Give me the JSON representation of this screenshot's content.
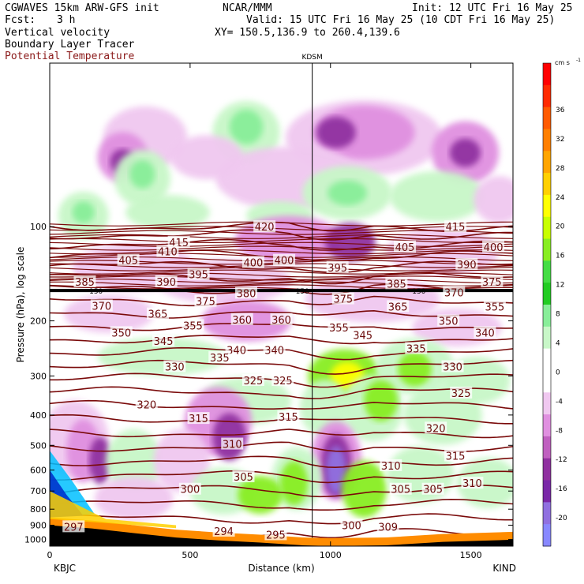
{
  "header": {
    "model": "CGWAVES 15km ARW-GFS init",
    "center": "NCAR/MMM",
    "init": "Init: 12 UTC Fri 16 May 25",
    "fcst_label": "Fcst:",
    "fcst_value": "3 h",
    "valid": "Valid: 15 UTC Fri 16 May 25 (10 CDT Fri 16 May 25)",
    "field1": "Vertical velocity",
    "xy": "XY= 150.5,136.9 to 260.4,139.6",
    "field2": "Boundary Layer Tracer",
    "field3": "Potential Temperature"
  },
  "chart_data": {
    "type": "heatmap",
    "title": "",
    "xlabel": "Distance (km)",
    "ylabel": "Pressure (hPa), log scale",
    "xlim": [
      0,
      1650
    ],
    "ylim": [
      1050,
      30
    ],
    "x_ticks": [
      0,
      500,
      1000,
      1500
    ],
    "y_ticks": [
      100,
      200,
      300,
      400,
      500,
      600,
      700,
      800,
      900,
      1000
    ],
    "station_marker": {
      "label": "KDSM",
      "x": 935
    },
    "endpoints": {
      "left": "KBJC",
      "right": "KIND"
    },
    "colorbar": {
      "unit": "cm s",
      "unit_exp": "-1",
      "levels": [
        36,
        32,
        28,
        24,
        20,
        16,
        12,
        8,
        4,
        0,
        -4,
        -8,
        -12,
        -16,
        -20
      ],
      "colors": [
        "#ff0000",
        "#ff2a00",
        "#ff5a00",
        "#ff7f00",
        "#ffa500",
        "#ffd000",
        "#ffff00",
        "#c8ff00",
        "#88ee22",
        "#44dd44",
        "#22cc22",
        "#88ee99",
        "#c8f7c8",
        "#ffffff",
        "#ffffff",
        "#f0c8f0",
        "#e090e0",
        "#c060c0",
        "#9030a0",
        "#7a28a8",
        "#9070e0",
        "#8888ff"
      ]
    },
    "theta_labels": [
      {
        "v": "420",
        "x": 765,
        "p": 100
      },
      {
        "v": "415",
        "x": 460,
        "p": 112
      },
      {
        "v": "415",
        "x": 1445,
        "p": 100
      },
      {
        "v": "410",
        "x": 420,
        "p": 120
      },
      {
        "v": "405",
        "x": 280,
        "p": 128
      },
      {
        "v": "405",
        "x": 1265,
        "p": 116
      },
      {
        "v": "400",
        "x": 725,
        "p": 130
      },
      {
        "v": "400",
        "x": 835,
        "p": 128
      },
      {
        "v": "400",
        "x": 1580,
        "p": 116
      },
      {
        "v": "395",
        "x": 530,
        "p": 142
      },
      {
        "v": "395",
        "x": 1025,
        "p": 135
      },
      {
        "v": "390",
        "x": 415,
        "p": 150
      },
      {
        "v": "390",
        "x": 1485,
        "p": 132
      },
      {
        "v": "385",
        "x": 125,
        "p": 150
      },
      {
        "v": "385",
        "x": 1235,
        "p": 152
      },
      {
        "v": "380",
        "x": 700,
        "p": 163
      },
      {
        "v": "375",
        "x": 555,
        "p": 173
      },
      {
        "v": "375",
        "x": 1045,
        "p": 170
      },
      {
        "v": "375",
        "x": 1575,
        "p": 150
      },
      {
        "v": "370",
        "x": 185,
        "p": 179
      },
      {
        "v": "370",
        "x": 1440,
        "p": 162
      },
      {
        "v": "365",
        "x": 385,
        "p": 190
      },
      {
        "v": "365",
        "x": 1240,
        "p": 180
      },
      {
        "v": "360",
        "x": 685,
        "p": 198
      },
      {
        "v": "360",
        "x": 825,
        "p": 198
      },
      {
        "v": "355",
        "x": 510,
        "p": 207
      },
      {
        "v": "355",
        "x": 1030,
        "p": 210
      },
      {
        "v": "355",
        "x": 1585,
        "p": 180
      },
      {
        "v": "350",
        "x": 255,
        "p": 218
      },
      {
        "v": "350",
        "x": 1420,
        "p": 200
      },
      {
        "v": "345",
        "x": 405,
        "p": 232
      },
      {
        "v": "345",
        "x": 1115,
        "p": 222
      },
      {
        "v": "340",
        "x": 665,
        "p": 248
      },
      {
        "v": "340",
        "x": 800,
        "p": 248
      },
      {
        "v": "340",
        "x": 1550,
        "p": 218
      },
      {
        "v": "335",
        "x": 605,
        "p": 262
      },
      {
        "v": "335",
        "x": 1305,
        "p": 245
      },
      {
        "v": "330",
        "x": 445,
        "p": 280
      },
      {
        "v": "330",
        "x": 1435,
        "p": 280
      },
      {
        "v": "325",
        "x": 725,
        "p": 310
      },
      {
        "v": "325",
        "x": 830,
        "p": 310
      },
      {
        "v": "325",
        "x": 1465,
        "p": 340
      },
      {
        "v": "320",
        "x": 345,
        "p": 370
      },
      {
        "v": "320",
        "x": 1375,
        "p": 440
      },
      {
        "v": "315",
        "x": 530,
        "p": 410
      },
      {
        "v": "315",
        "x": 850,
        "p": 405
      },
      {
        "v": "315",
        "x": 1445,
        "p": 540
      },
      {
        "v": "310",
        "x": 650,
        "p": 495
      },
      {
        "v": "310",
        "x": 1215,
        "p": 580
      },
      {
        "v": "310",
        "x": 1505,
        "p": 660
      },
      {
        "v": "305",
        "x": 690,
        "p": 630
      },
      {
        "v": "305",
        "x": 1250,
        "p": 690
      },
      {
        "v": "305",
        "x": 1365,
        "p": 690
      },
      {
        "v": "300",
        "x": 500,
        "p": 690
      },
      {
        "v": "300",
        "x": 1075,
        "p": 900
      },
      {
        "v": "309",
        "x": 1205,
        "p": 910
      },
      {
        "v": "297",
        "x": 85,
        "p": 910
      },
      {
        "v": "294",
        "x": 620,
        "p": 940
      },
      {
        "v": "295",
        "x": 805,
        "p": 965
      }
    ],
    "tracer_labels": [
      {
        "v": "150",
        "x": 165,
        "p": 160
      },
      {
        "v": "150",
        "x": 900,
        "p": 160
      },
      {
        "v": "150",
        "x": 1315,
        "p": 160
      }
    ],
    "theta_levels": [
      420,
      415,
      410,
      405,
      400,
      395,
      390,
      385,
      380,
      375,
      370,
      365,
      360,
      355,
      350,
      345,
      340,
      335,
      330,
      325,
      320,
      315,
      310,
      305,
      300
    ]
  }
}
